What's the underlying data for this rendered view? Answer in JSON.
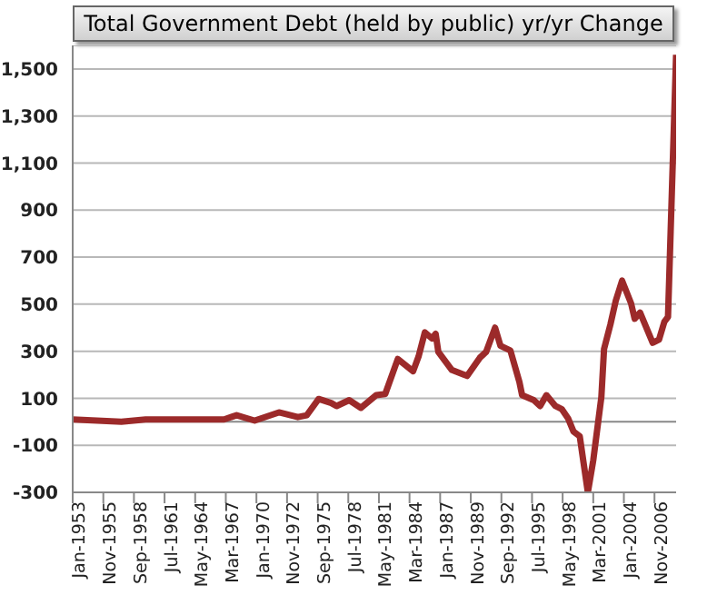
{
  "chart_data": {
    "type": "line",
    "title": "Total Government Debt (held by public) yr/yr Change",
    "x": [
      "1953-01",
      "1957-07",
      "1959-10",
      "1967-01",
      "1968-03",
      "1969-11",
      "1972-02",
      "1973-11",
      "1974-09",
      "1975-10",
      "1976-12",
      "1977-06",
      "1978-08",
      "1979-09",
      "1981-02",
      "1981-12",
      "1983-02",
      "1984-07",
      "1985-01",
      "1985-08",
      "1986-04",
      "1986-08",
      "1986-11",
      "1988-02",
      "1989-07",
      "1990-09",
      "1991-04",
      "1992-02",
      "1992-08",
      "1993-07",
      "1994-05",
      "1994-08",
      "1995-09",
      "1996-04",
      "1996-11",
      "1997-09",
      "1998-04",
      "1998-11",
      "1999-05",
      "1999-12",
      "2000-09",
      "2001-03",
      "2001-12",
      "2002-03",
      "2002-10",
      "2003-04",
      "2003-11",
      "2004-09",
      "2005-01",
      "2005-07",
      "2006-09",
      "2007-04",
      "2007-10",
      "2008-02",
      "2008-11"
    ],
    "series": [
      {
        "color": "#9c2a2a",
        "values": [
          10,
          0,
          10,
          10,
          28,
          5,
          40,
          20,
          28,
          97,
          80,
          67,
          92,
          59,
          113,
          118,
          267,
          215,
          277,
          380,
          354,
          374,
          297,
          220,
          195,
          272,
          297,
          400,
          323,
          303,
          169,
          113,
          92,
          67,
          113,
          67,
          54,
          15,
          -41,
          -62,
          -300,
          -164,
          105,
          310,
          413,
          515,
          600,
          503,
          438,
          464,
          336,
          349,
          426,
          446,
          1560
        ]
      }
    ],
    "xlim": [
      "1953-01",
      "2008-11"
    ],
    "xticks": [
      {
        "value": "1953-01",
        "label": "Jan-1953"
      },
      {
        "value": "1955-11",
        "label": "Nov-1955"
      },
      {
        "value": "1958-09",
        "label": "Sep-1958"
      },
      {
        "value": "1961-07",
        "label": "Jul-1961"
      },
      {
        "value": "1964-05",
        "label": "May-1964"
      },
      {
        "value": "1967-03",
        "label": "Mar-1967"
      },
      {
        "value": "1970-01",
        "label": "Jan-1970"
      },
      {
        "value": "1972-11",
        "label": "Nov-1972"
      },
      {
        "value": "1975-09",
        "label": "Sep-1975"
      },
      {
        "value": "1978-07",
        "label": "Jul-1978"
      },
      {
        "value": "1981-05",
        "label": "May-1981"
      },
      {
        "value": "1984-03",
        "label": "Mar-1984"
      },
      {
        "value": "1987-01",
        "label": "Jan-1987"
      },
      {
        "value": "1989-11",
        "label": "Nov-1989"
      },
      {
        "value": "1992-09",
        "label": "Sep-1992"
      },
      {
        "value": "1995-07",
        "label": "Jul-1995"
      },
      {
        "value": "1998-05",
        "label": "May-1998"
      },
      {
        "value": "2001-03",
        "label": "Mar-2001"
      },
      {
        "value": "2004-01",
        "label": "Jan-2004"
      },
      {
        "value": "2006-11",
        "label": "Nov-2006"
      }
    ],
    "ylim": [
      -300,
      1600
    ],
    "yticks": [
      -300,
      -100,
      {
        "value": 100,
        "label": "100"
      },
      {
        "value": 300,
        "label": "300"
      },
      {
        "value": 500,
        "label": "500"
      },
      {
        "value": 700,
        "label": "700"
      },
      {
        "value": 900,
        "label": "900"
      },
      {
        "value": 1100,
        "label": "1,100"
      },
      {
        "value": 1300,
        "label": "1,300"
      },
      {
        "value": 1500,
        "label": "1,500"
      }
    ],
    "ref_lines": [
      {
        "axis": "y",
        "value": 0,
        "color": "#888888"
      }
    ],
    "grid": "y",
    "marker": "none",
    "line_style": "solid"
  }
}
